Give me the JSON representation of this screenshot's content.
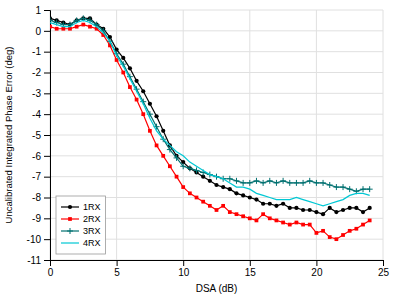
{
  "chart_data": {
    "type": "line",
    "xlabel": "DSA (dB)",
    "ylabel": "Uncalibrated Integrated Phase Error (deg)",
    "x": [
      0,
      0.5,
      1,
      1.5,
      2,
      2.5,
      3,
      3.5,
      4,
      4.5,
      5,
      5.5,
      6,
      6.5,
      7,
      7.5,
      8,
      8.5,
      9,
      9.5,
      10,
      10.5,
      11,
      11.5,
      12,
      12.5,
      13,
      13.5,
      14,
      14.5,
      15,
      15.5,
      16,
      16.5,
      17,
      17.5,
      18,
      18.5,
      19,
      19.5,
      20,
      20.5,
      21,
      21.5,
      22,
      22.5,
      23,
      23.5,
      24
    ],
    "series": [
      {
        "name": "1RX",
        "color": "#000000",
        "marker": "circle",
        "values": [
          0.6,
          0.5,
          0.4,
          0.3,
          0.5,
          0.6,
          0.6,
          0.3,
          0.1,
          -0.3,
          -0.9,
          -1.3,
          -1.8,
          -2.4,
          -2.9,
          -3.5,
          -4.1,
          -4.8,
          -5.5,
          -6.0,
          -6.3,
          -6.6,
          -6.8,
          -7.0,
          -7.2,
          -7.4,
          -7.5,
          -7.6,
          -7.8,
          -7.9,
          -8.0,
          -8.1,
          -8.3,
          -8.3,
          -8.4,
          -8.3,
          -8.5,
          -8.5,
          -8.6,
          -8.6,
          -8.7,
          -8.8,
          -8.5,
          -8.7,
          -8.6,
          -8.5,
          -8.5,
          -8.7,
          -8.5
        ]
      },
      {
        "name": "2RX",
        "color": "#ff0000",
        "marker": "square",
        "values": [
          0.2,
          0.1,
          0.1,
          0.1,
          0.2,
          0.3,
          0.2,
          0.1,
          -0.2,
          -0.7,
          -1.4,
          -2.0,
          -2.7,
          -3.3,
          -4.0,
          -4.8,
          -5.5,
          -6.0,
          -6.5,
          -7.0,
          -7.5,
          -7.8,
          -8.0,
          -8.2,
          -8.4,
          -8.6,
          -8.4,
          -8.7,
          -8.8,
          -8.9,
          -9.0,
          -9.1,
          -8.8,
          -9.0,
          -9.1,
          -9.2,
          -9.3,
          -9.2,
          -9.3,
          -9.3,
          -9.7,
          -9.6,
          -9.9,
          -10.0,
          -9.8,
          -9.6,
          -9.5,
          -9.3,
          -9.1
        ]
      },
      {
        "name": "3RX",
        "color": "#007070",
        "marker": "plus",
        "values": [
          0.5,
          0.4,
          0.3,
          0.3,
          0.5,
          0.6,
          0.5,
          0.3,
          0.0,
          -0.5,
          -1.1,
          -1.6,
          -2.2,
          -2.8,
          -3.4,
          -4.0,
          -4.6,
          -5.2,
          -5.7,
          -6.1,
          -6.5,
          -6.6,
          -6.7,
          -6.8,
          -6.9,
          -7.0,
          -7.1,
          -7.1,
          -7.2,
          -7.3,
          -7.3,
          -7.2,
          -7.3,
          -7.2,
          -7.3,
          -7.2,
          -7.3,
          -7.3,
          -7.3,
          -7.2,
          -7.3,
          -7.3,
          -7.4,
          -7.5,
          -7.5,
          -7.6,
          -7.7,
          -7.6,
          -7.6
        ]
      },
      {
        "name": "4RX",
        "color": "#00c8d4",
        "marker": "none",
        "values": [
          0.4,
          0.3,
          0.2,
          0.2,
          0.4,
          0.5,
          0.4,
          0.2,
          -0.1,
          -0.5,
          -1.2,
          -1.7,
          -2.3,
          -2.9,
          -3.5,
          -4.2,
          -4.8,
          -5.2,
          -5.5,
          -5.8,
          -6.0,
          -6.3,
          -6.5,
          -6.7,
          -6.9,
          -7.0,
          -7.1,
          -7.3,
          -7.5,
          -7.5,
          -7.6,
          -7.8,
          -7.9,
          -8.0,
          -8.1,
          -8.1,
          -8.1,
          -8.0,
          -8.1,
          -8.2,
          -8.3,
          -8.4,
          -8.3,
          -8.2,
          -8.1,
          -7.9,
          -7.8,
          -7.8,
          -7.9
        ]
      }
    ],
    "xlim": [
      0,
      25
    ],
    "ylim": [
      -11,
      1
    ],
    "xticks": [
      0,
      5,
      10,
      15,
      20,
      25
    ],
    "yticks": [
      1,
      0,
      -1,
      -2,
      -3,
      -4,
      -5,
      -6,
      -7,
      -8,
      -9,
      -10,
      -11
    ],
    "grid": true,
    "legend": "lower left"
  }
}
